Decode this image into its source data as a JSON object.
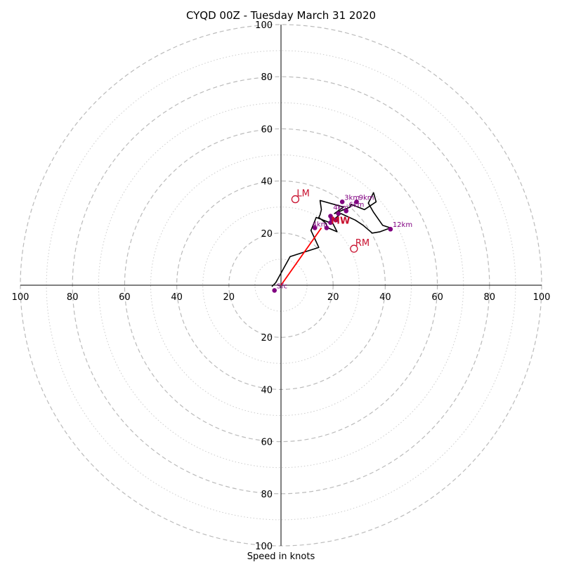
{
  "chart_data": {
    "type": "scatter",
    "title": "CYQD 00Z - Tuesday March 31 2020",
    "xlabel": "Speed in knots",
    "ylabel": "",
    "xlim": [
      -100,
      100
    ],
    "ylim": [
      -100,
      100
    ],
    "ring_major": [
      20,
      40,
      60,
      80,
      100
    ],
    "ring_minor": [
      10,
      30,
      50,
      70,
      90
    ],
    "tick_labels": {
      "x_neg": [
        "100",
        "80",
        "60",
        "40",
        "20"
      ],
      "x_pos": [
        "20",
        "40",
        "60",
        "80",
        "100"
      ],
      "y_pos": [
        "20",
        "40",
        "60",
        "80",
        "100"
      ],
      "y_neg": [
        "20",
        "40",
        "60",
        "80",
        "100"
      ]
    },
    "hodograph_trace": [
      [
        -3.5,
        -0.5
      ],
      [
        -2,
        1
      ],
      [
        3.5,
        11
      ],
      [
        14.5,
        14.5
      ],
      [
        11.5,
        21
      ],
      [
        13.5,
        26
      ],
      [
        20,
        23.5
      ],
      [
        21.5,
        20.5
      ],
      [
        18,
        22
      ],
      [
        17,
        24
      ],
      [
        14.5,
        26
      ],
      [
        15,
        27
      ],
      [
        15.5,
        29
      ],
      [
        15,
        32.5
      ],
      [
        24,
        30
      ],
      [
        20.5,
        27.5
      ],
      [
        26.5,
        30
      ],
      [
        27,
        31
      ],
      [
        32,
        29
      ],
      [
        36.5,
        32
      ],
      [
        35.5,
        35.5
      ],
      [
        33.5,
        31.5
      ],
      [
        35.5,
        28
      ],
      [
        39,
        23
      ],
      [
        42,
        22
      ],
      [
        38,
        20.5
      ],
      [
        35,
        20
      ],
      [
        31.5,
        23
      ],
      [
        28.5,
        25
      ],
      [
        23,
        27.5
      ],
      [
        20,
        25
      ]
    ],
    "height_points": [
      {
        "label": "Sfc",
        "u": -2.5,
        "v": -2
      },
      {
        "label": "",
        "u": 13,
        "v": 22
      },
      {
        "label": "",
        "u": 17.5,
        "v": 22
      },
      {
        "label": "",
        "u": 19,
        "v": 24
      },
      {
        "label": "",
        "u": 21,
        "v": 25
      },
      {
        "label": "",
        "u": 19,
        "v": 26.5
      },
      {
        "label": "",
        "u": 22,
        "v": 27.5
      },
      {
        "label": "",
        "u": 25,
        "v": 28.5
      },
      {
        "label": "",
        "u": 19.5,
        "v": 25.5
      },
      {
        "label": "3km",
        "u": 23.5,
        "v": 32
      },
      {
        "label": "9km",
        "u": 29,
        "v": 32
      },
      {
        "label": "12km",
        "u": 42,
        "v": 21.5
      }
    ],
    "extra_height_labels": [
      {
        "label": "4km",
        "u": 20,
        "v": 29
      },
      {
        "label": "6km",
        "u": 26,
        "v": 30
      },
      {
        "label": "4km",
        "u": 12,
        "v": 22.5
      }
    ],
    "storm_motion": [
      {
        "label": "LM",
        "u": 5.5,
        "v": 33
      },
      {
        "label": "RM",
        "u": 28,
        "v": 14
      },
      {
        "label": "MW",
        "u": 20.5,
        "v": 25
      }
    ],
    "shear_vector": {
      "from": [
        0,
        0
      ],
      "to": [
        15.5,
        22
      ]
    },
    "colors": {
      "trace": "#000000",
      "points": "#800080",
      "point_labels": "#800080",
      "storm_motion": "#c8102e",
      "shear_vector": "#ff0000",
      "grid_major": "#bbbbbb",
      "grid_minor": "#cccccc",
      "axes": "#000000"
    }
  }
}
